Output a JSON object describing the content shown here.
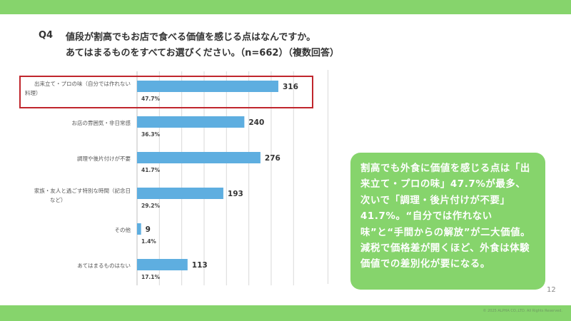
{
  "header": {
    "question_label": "Q4",
    "title_line1": "値段が割高でもお店で食べる価値を感じる点はなんですか。",
    "title_line2": "あてはまるものをすべてお選びください。（n=662）（複数回答）"
  },
  "chart_data": {
    "type": "bar",
    "orientation": "horizontal",
    "categories": [
      "出来立て・プロの味（自分では作れない料理）",
      "お店の雰囲気・非日常感",
      "調理や後片付けが不要",
      "家族・友人と過ごす特別な時間（記念日など）",
      "その他",
      "あてはまるものはない"
    ],
    "category_lines": [
      [
        "出来立て・プロの味（自分では作れない",
        "料理）"
      ],
      [
        "お店の雰囲気・非日常感"
      ],
      [
        "調理や後片付けが不要"
      ],
      [
        "家族・友人と過ごす特別な時間（記念日",
        "など）"
      ],
      [
        "その他"
      ],
      [
        "あてはまるものはない"
      ]
    ],
    "values": [
      316,
      240,
      276,
      193,
      9,
      113
    ],
    "percent_labels": [
      "47.7%",
      "36.3%",
      "41.7%",
      "29.2%",
      "1.4%",
      "17.1%"
    ],
    "xlim": [
      0,
      350
    ],
    "grid": true,
    "highlight_index": 0,
    "colors": {
      "bar": "#5eaee0",
      "grid": "#d9d9d9",
      "highlight": "#c0262d"
    }
  },
  "summary": {
    "text": "割高でも外食に価値を感じる点は「出来立て・プロの味」47.7%が最多、次いで「調理・後片付けが不要」41.7%。“自分では作れない味”と“手間からの解放”が二大価値。減税で価格差が開くほど、外食は体験価値での差別化が要になる。"
  },
  "footer": {
    "page_number": "12",
    "copyright": "© 2025 ALPHA CO.,LTD. All Rights Reserved."
  },
  "colors": {
    "brand_green": "#86d46c",
    "text": "#333333"
  }
}
